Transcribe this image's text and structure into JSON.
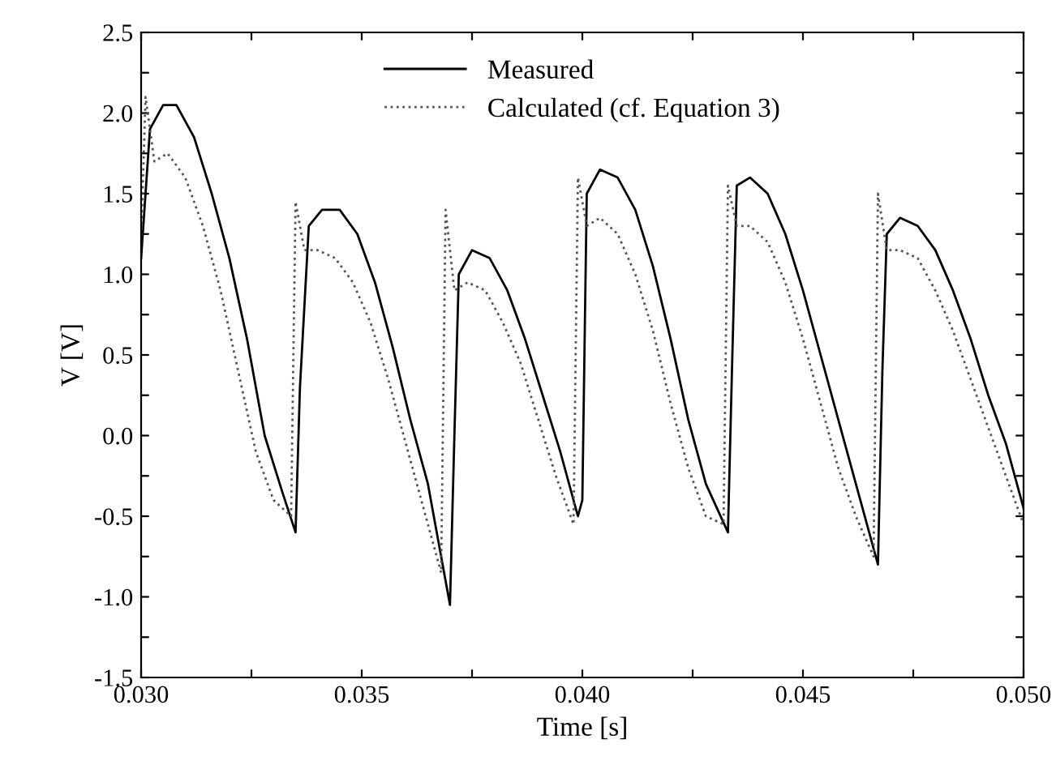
{
  "chart_data": {
    "type": "line",
    "xlabel": "Time [s]",
    "ylabel": "V [V]",
    "xlim": [
      0.03,
      0.05
    ],
    "ylim": [
      -1.5,
      2.5
    ],
    "xticks": [
      {
        "value": 0.03,
        "label": "0.030"
      },
      {
        "value": 0.0325,
        "label": null
      },
      {
        "value": 0.035,
        "label": "0.035"
      },
      {
        "value": 0.0375,
        "label": null
      },
      {
        "value": 0.04,
        "label": "0.040"
      },
      {
        "value": 0.0425,
        "label": null
      },
      {
        "value": 0.045,
        "label": "0.045"
      },
      {
        "value": 0.0475,
        "label": null
      },
      {
        "value": 0.05,
        "label": "0.050"
      }
    ],
    "yticks": [
      {
        "value": -1.5,
        "label": "-1.5"
      },
      {
        "value": -1.25,
        "label": null
      },
      {
        "value": -1.0,
        "label": "-1.0"
      },
      {
        "value": -0.75,
        "label": null
      },
      {
        "value": -0.5,
        "label": "-0.5"
      },
      {
        "value": -0.25,
        "label": null
      },
      {
        "value": 0.0,
        "label": "0.0"
      },
      {
        "value": 0.25,
        "label": null
      },
      {
        "value": 0.5,
        "label": "0.5"
      },
      {
        "value": 0.75,
        "label": null
      },
      {
        "value": 1.0,
        "label": "1.0"
      },
      {
        "value": 1.25,
        "label": null
      },
      {
        "value": 1.5,
        "label": "1.5"
      },
      {
        "value": 1.75,
        "label": null
      },
      {
        "value": 2.0,
        "label": "2.0"
      },
      {
        "value": 2.25,
        "label": null
      },
      {
        "value": 2.5,
        "label": "2.5"
      }
    ],
    "grid": false,
    "legend": "top",
    "marker": "none",
    "series": [
      {
        "name": "Measured",
        "color": "#000000",
        "line_style": "solid",
        "x": [
          0.03,
          0.0302,
          0.0305,
          0.0308,
          0.0312,
          0.0316,
          0.032,
          0.0324,
          0.0328,
          0.0332,
          0.0335,
          0.0336,
          0.0338,
          0.0341,
          0.0345,
          0.0349,
          0.0353,
          0.0357,
          0.0361,
          0.0365,
          0.0368,
          0.037,
          0.0371,
          0.0372,
          0.0375,
          0.0379,
          0.0383,
          0.0387,
          0.0391,
          0.0395,
          0.0399,
          0.04,
          0.0401,
          0.0404,
          0.0408,
          0.0412,
          0.0416,
          0.042,
          0.0424,
          0.0428,
          0.0433,
          0.0434,
          0.0435,
          0.0438,
          0.0442,
          0.0446,
          0.045,
          0.0454,
          0.0458,
          0.0462,
          0.0467,
          0.0468,
          0.0469,
          0.0472,
          0.0476,
          0.048,
          0.0484,
          0.0488,
          0.0492,
          0.0496,
          0.05
        ],
        "values": [
          1.1,
          1.9,
          2.05,
          2.05,
          1.85,
          1.5,
          1.1,
          0.6,
          0.0,
          -0.35,
          -0.6,
          0.3,
          1.3,
          1.4,
          1.4,
          1.25,
          0.95,
          0.55,
          0.1,
          -0.3,
          -0.75,
          -1.05,
          0.0,
          1.0,
          1.15,
          1.1,
          0.9,
          0.6,
          0.25,
          -0.1,
          -0.5,
          -0.4,
          1.5,
          1.65,
          1.6,
          1.4,
          1.05,
          0.6,
          0.1,
          -0.3,
          -0.6,
          0.5,
          1.55,
          1.6,
          1.5,
          1.25,
          0.9,
          0.5,
          0.1,
          -0.3,
          -0.8,
          0.4,
          1.25,
          1.35,
          1.3,
          1.15,
          0.9,
          0.6,
          0.25,
          -0.05,
          -0.45
        ]
      },
      {
        "name": "Calculated (cf. Equation 3)",
        "color": "#555555",
        "line_style": "dotted",
        "x": [
          0.03,
          0.0301,
          0.0303,
          0.0306,
          0.031,
          0.0314,
          0.0318,
          0.0322,
          0.0326,
          0.033,
          0.0334,
          0.0335,
          0.0337,
          0.034,
          0.0344,
          0.0348,
          0.0352,
          0.0356,
          0.036,
          0.0364,
          0.0368,
          0.0369,
          0.0371,
          0.0374,
          0.0378,
          0.0382,
          0.0386,
          0.039,
          0.0394,
          0.0398,
          0.0399,
          0.0401,
          0.0404,
          0.0408,
          0.0412,
          0.0416,
          0.042,
          0.0424,
          0.0428,
          0.0432,
          0.0433,
          0.0435,
          0.0438,
          0.0442,
          0.0446,
          0.045,
          0.0454,
          0.0458,
          0.0462,
          0.0466,
          0.0467,
          0.0469,
          0.0472,
          0.0476,
          0.048,
          0.0484,
          0.0488,
          0.0492,
          0.0496,
          0.05
        ],
        "values": [
          1.2,
          2.1,
          1.7,
          1.75,
          1.6,
          1.3,
          0.9,
          0.4,
          -0.1,
          -0.4,
          -0.5,
          1.45,
          1.15,
          1.15,
          1.1,
          0.95,
          0.7,
          0.35,
          -0.05,
          -0.45,
          -0.85,
          1.4,
          0.9,
          0.95,
          0.9,
          0.7,
          0.45,
          0.1,
          -0.25,
          -0.55,
          1.6,
          1.3,
          1.35,
          1.25,
          1.0,
          0.65,
          0.2,
          -0.2,
          -0.5,
          -0.55,
          1.55,
          1.3,
          1.3,
          1.2,
          0.95,
          0.6,
          0.2,
          -0.2,
          -0.5,
          -0.75,
          1.5,
          1.15,
          1.15,
          1.1,
          0.9,
          0.65,
          0.35,
          0.05,
          -0.25,
          -0.55
        ]
      }
    ]
  }
}
